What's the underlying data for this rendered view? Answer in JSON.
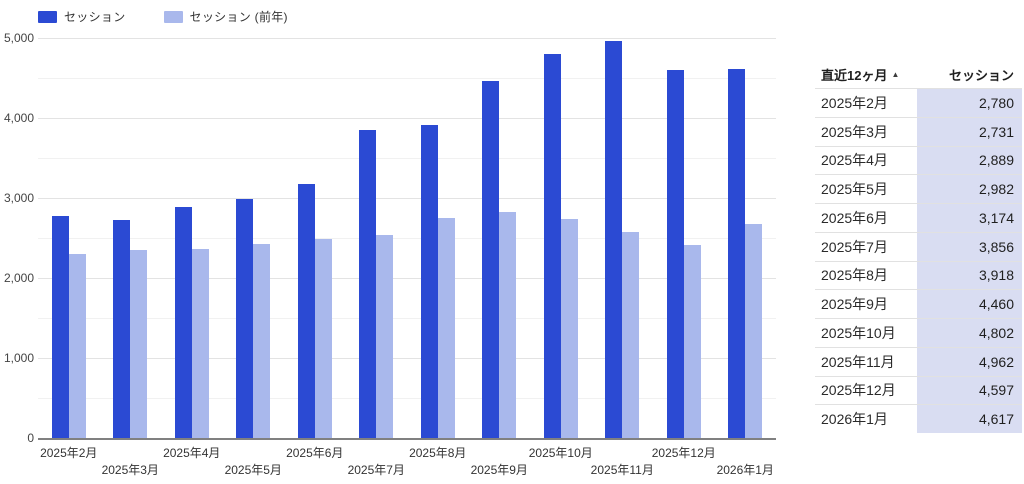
{
  "colors": {
    "series_primary": "#2b4ad3",
    "series_secondary": "#a9b8ec",
    "table_value_bg": "#d9ddf2",
    "grid_major": "#e3e3e3",
    "grid_minor": "#f1f1f1",
    "axis_line": "#808080"
  },
  "legend": {
    "items": [
      {
        "label": "セッション",
        "color": "#2b4ad3"
      },
      {
        "label": "セッション (前年)",
        "color": "#a9b8ec"
      }
    ]
  },
  "chart_data": {
    "type": "bar",
    "title": "",
    "categories": [
      "2025年2月",
      "2025年3月",
      "2025年4月",
      "2025年5月",
      "2025年6月",
      "2025年7月",
      "2025年8月",
      "2025年9月",
      "2025年10月",
      "2025年11月",
      "2025年12月",
      "2026年1月"
    ],
    "series": [
      {
        "name": "セッション",
        "color": "#2b4ad3",
        "values": [
          2780,
          2731,
          2889,
          2982,
          3174,
          3856,
          3918,
          4460,
          4802,
          4962,
          4597,
          4617
        ]
      },
      {
        "name": "セッション (前年)",
        "color": "#a9b8ec",
        "values": [
          2300,
          2350,
          2360,
          2420,
          2490,
          2540,
          2750,
          2830,
          2740,
          2580,
          2410,
          2670
        ]
      }
    ],
    "xlabel": "",
    "ylabel": "",
    "ylim": [
      0,
      5000
    ],
    "ytick_labels": [
      "0",
      "1,000",
      "2,000",
      "3,000",
      "4,000",
      "5,000"
    ],
    "ytick_step": 1000,
    "grid_step": 500,
    "grid": "on",
    "legend_position": "top-left"
  },
  "table": {
    "columns": [
      "直近12ヶ月",
      "セッション"
    ],
    "sort_indicator": "▲",
    "rows": [
      [
        "2025年2月",
        "2,780"
      ],
      [
        "2025年3月",
        "2,731"
      ],
      [
        "2025年4月",
        "2,889"
      ],
      [
        "2025年5月",
        "2,982"
      ],
      [
        "2025年6月",
        "3,174"
      ],
      [
        "2025年7月",
        "3,856"
      ],
      [
        "2025年8月",
        "3,918"
      ],
      [
        "2025年9月",
        "4,460"
      ],
      [
        "2025年10月",
        "4,802"
      ],
      [
        "2025年11月",
        "4,962"
      ],
      [
        "2025年12月",
        "4,597"
      ],
      [
        "2026年1月",
        "4,617"
      ]
    ]
  }
}
